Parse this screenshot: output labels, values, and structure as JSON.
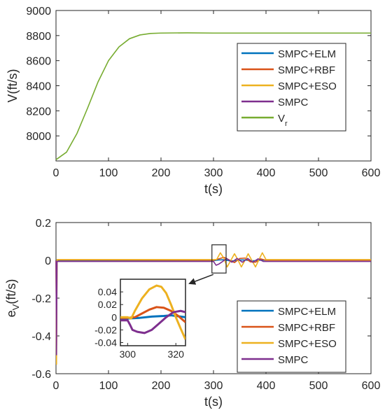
{
  "chart_data": [
    {
      "type": "line",
      "title": "",
      "xlabel": "t(s)",
      "ylabel": "V(ft/s)",
      "xlim": [
        0,
        600
      ],
      "ylim": [
        7800,
        9000
      ],
      "xticks": [
        0,
        100,
        200,
        300,
        400,
        500,
        600
      ],
      "xtick_labels": [
        "0",
        "100",
        "200",
        "300",
        "400",
        "500",
        "600"
      ],
      "yticks": [
        8000,
        8200,
        8400,
        8600,
        8800,
        9000
      ],
      "ytick_labels": [
        "8000",
        "8200",
        "8400",
        "8600",
        "8800",
        "9000"
      ],
      "grid": false,
      "legend_position": "right",
      "legend": [
        "SMPC+ELM",
        "SMPC+RBF",
        "SMPC+ESO",
        "SMPC"
      ],
      "legend_last_base": "V",
      "legend_last_sub": "r",
      "colors": {
        "ELM": "#0072BD",
        "RBF": "#D95319",
        "ESO": "#EDB120",
        "SMPC": "#7E2F8E",
        "Vr": "#77AC30"
      },
      "series": [
        {
          "name": "V_r",
          "x": [
            0,
            20,
            40,
            60,
            80,
            100,
            120,
            140,
            160,
            180,
            200,
            250,
            300,
            400,
            500,
            600
          ],
          "y": [
            7810,
            7870,
            8020,
            8220,
            8430,
            8600,
            8710,
            8775,
            8805,
            8817,
            8820,
            8822,
            8820,
            8820,
            8820,
            8820
          ]
        }
      ]
    },
    {
      "type": "line",
      "title": "",
      "xlabel": "t(s)",
      "ylabel_base": "e",
      "ylabel_sub": "V",
      "ylabel_tail": "(ft/s)",
      "xlim": [
        0,
        600
      ],
      "ylim": [
        -0.6,
        0.2
      ],
      "xticks": [
        0,
        100,
        200,
        300,
        400,
        500,
        600
      ],
      "xtick_labels": [
        "0",
        "100",
        "200",
        "300",
        "400",
        "500",
        "600"
      ],
      "yticks": [
        -0.6,
        -0.4,
        -0.2,
        0,
        0.2
      ],
      "ytick_labels": [
        "-0.6",
        "-0.4",
        "-0.2",
        "0",
        "0.2"
      ],
      "grid": false,
      "legend_position": "bottom-right",
      "legend": [
        "SMPC+ELM",
        "SMPC+RBF",
        "SMPC+ESO",
        "SMPC"
      ],
      "series": [
        {
          "name": "SMPC+ELM",
          "x": [
            0,
            2,
            300,
            310,
            320,
            330,
            340,
            350,
            360,
            370,
            380,
            390,
            400,
            410,
            600
          ],
          "y": [
            0.0,
            -0.002,
            -0.002,
            0.002,
            0.003,
            -0.002,
            -0.003,
            0.002,
            0.002,
            -0.002,
            -0.002,
            0.001,
            0.0,
            0.0,
            0.0
          ]
        },
        {
          "name": "SMPC+RBF",
          "x": [
            0,
            1,
            2,
            300,
            310,
            320,
            330,
            340,
            350,
            360,
            370,
            380,
            390,
            400,
            410,
            600
          ],
          "y": [
            0.0,
            -0.45,
            0.002,
            0.0,
            0.008,
            0.016,
            0.002,
            -0.012,
            0.01,
            0.012,
            -0.008,
            -0.01,
            0.008,
            0.0,
            0.0,
            0.0
          ]
        },
        {
          "name": "SMPC+ESO",
          "x": [
            0,
            1,
            2,
            300,
            306,
            313,
            320,
            326,
            333,
            340,
            346,
            353,
            360,
            366,
            373,
            380,
            386,
            393,
            400,
            410,
            600
          ],
          "y": [
            0.0,
            -0.55,
            0.004,
            0.004,
            0.004,
            0.04,
            0.01,
            -0.035,
            0.0,
            0.035,
            0.005,
            -0.035,
            0.0,
            0.035,
            0.0,
            -0.035,
            0.0,
            0.04,
            0.004,
            0.004,
            0.004
          ]
        },
        {
          "name": "SMPC",
          "x": [
            0,
            1,
            2,
            300,
            305,
            310,
            318,
            325,
            335,
            345,
            355,
            365,
            375,
            385,
            395,
            400,
            410,
            600
          ],
          "y": [
            0.0,
            -0.5,
            -0.006,
            -0.006,
            -0.026,
            -0.02,
            -0.005,
            0.01,
            -0.01,
            0.01,
            -0.01,
            0.01,
            -0.01,
            0.008,
            -0.006,
            -0.006,
            -0.006,
            -0.006
          ]
        }
      ],
      "inset": {
        "xlim": [
          297,
          324
        ],
        "ylim": [
          -0.045,
          0.06
        ],
        "xticks": [
          300,
          320
        ],
        "xtick_labels": [
          "300",
          "320"
        ],
        "yticks": [
          -0.04,
          -0.02,
          0,
          0.02,
          0.04
        ],
        "ytick_labels": [
          "-0.04",
          "-0.02",
          "0",
          "0.02",
          "0.04"
        ],
        "series": [
          {
            "name": "SMPC+ELM",
            "x": [
              297,
              300,
              305,
              310,
              315,
              318,
              320,
              322,
              324
            ],
            "y": [
              -0.002,
              -0.002,
              -0.001,
              0.001,
              0.002,
              0.003,
              0.002,
              0.001,
              0.0
            ]
          },
          {
            "name": "SMPC+RBF",
            "x": [
              297,
              300,
              303,
              306,
              309,
              312,
              315,
              318,
              321,
              324
            ],
            "y": [
              -0.001,
              -0.001,
              0.0,
              0.006,
              0.012,
              0.016,
              0.015,
              0.01,
              0.002,
              -0.008
            ]
          },
          {
            "name": "SMPC+ESO",
            "x": [
              297,
              300,
              301.5,
              303,
              306,
              309,
              312,
              314,
              316,
              318,
              320,
              322,
              324
            ],
            "y": [
              0.0,
              0.0,
              -0.002,
              0.01,
              0.03,
              0.044,
              0.05,
              0.048,
              0.038,
              0.02,
              0.0,
              -0.018,
              -0.035
            ]
          },
          {
            "name": "SMPC",
            "x": [
              297,
              300,
              301,
              302,
              304,
              307,
              310,
              313,
              316,
              319,
              322,
              324
            ],
            "y": [
              -0.005,
              -0.005,
              -0.012,
              -0.02,
              -0.023,
              -0.025,
              -0.02,
              -0.01,
              0.0,
              0.008,
              0.01,
              0.008
            ]
          }
        ]
      }
    }
  ]
}
